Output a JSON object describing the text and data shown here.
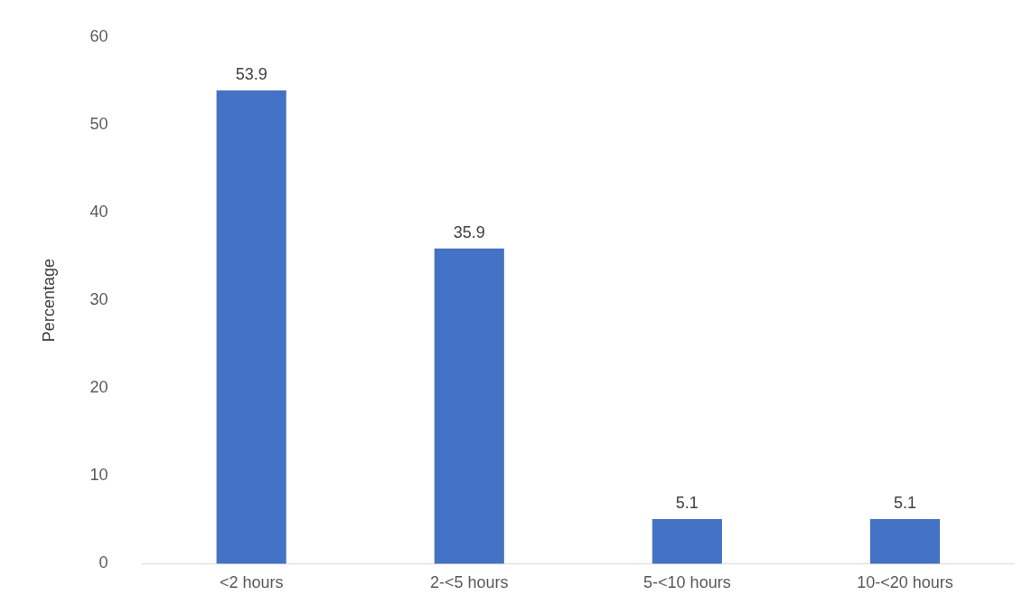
{
  "chart_data": {
    "type": "bar",
    "ylabel": "Percentage",
    "categories": [
      "<2 hours",
      "2-<5 hours",
      "5-<10 hours",
      "10-<20 hours"
    ],
    "values": [
      53.9,
      35.9,
      5.1,
      5.1
    ],
    "color": "#4472c4",
    "ylim": [
      0,
      60
    ],
    "yticks": [
      0,
      10,
      20,
      30,
      40,
      50,
      60
    ],
    "grid": false,
    "legend": false,
    "data_labels": true
  }
}
